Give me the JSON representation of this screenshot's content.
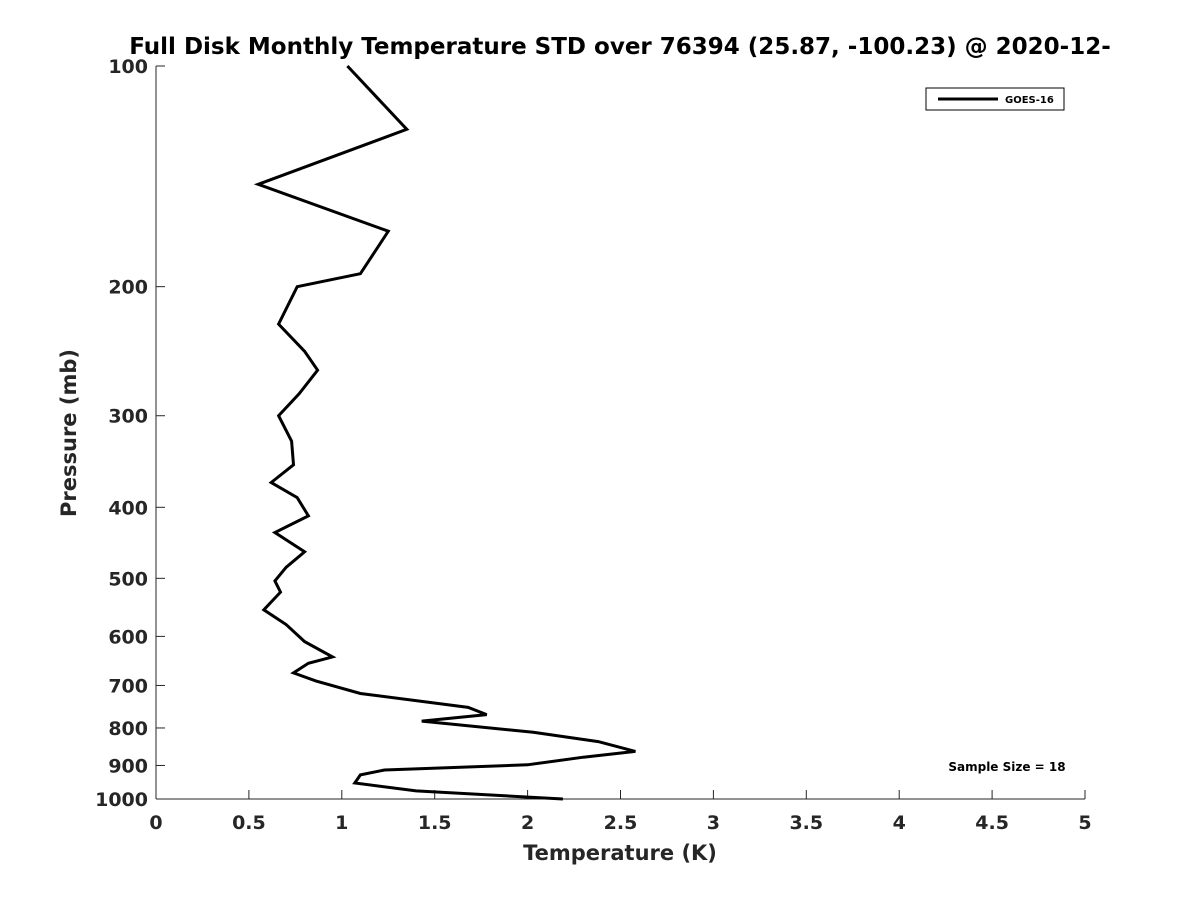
{
  "chart_data": {
    "type": "line",
    "title": "Full Disk Monthly Temperature STD over 76394 (25.87, -100.23) @ 2020-12-",
    "xlabel": "Temperature (K)",
    "ylabel": "Pressure (mb)",
    "xlim": [
      0,
      5
    ],
    "ylim": [
      100,
      1000
    ],
    "y_scale": "log",
    "y_reversed": true,
    "x_ticks": [
      0,
      0.5,
      1,
      1.5,
      2,
      2.5,
      3,
      3.5,
      4,
      4.5,
      5
    ],
    "x_tick_labels": [
      "0",
      "0.5",
      "1",
      "1.5",
      "2",
      "2.5",
      "3",
      "3.5",
      "4",
      "4.5",
      "5"
    ],
    "y_ticks": [
      100,
      200,
      300,
      400,
      500,
      600,
      700,
      800,
      900,
      1000
    ],
    "y_tick_labels": [
      "100",
      "200",
      "300",
      "400",
      "500",
      "600",
      "700",
      "800",
      "900",
      "1000"
    ],
    "grid": false,
    "legend_position": "top-right",
    "annotation": "Sample Size = 18",
    "series": [
      {
        "name": "GOES-16",
        "color": "#000000",
        "x": [
          1.03,
          1.35,
          0.55,
          1.25,
          1.1,
          0.76,
          0.66,
          0.8,
          0.87,
          0.77,
          0.66,
          0.73,
          0.74,
          0.62,
          0.76,
          0.82,
          0.64,
          0.8,
          0.7,
          0.64,
          0.67,
          0.58,
          0.7,
          0.8,
          0.95,
          0.82,
          0.74,
          0.86,
          1.1,
          1.68,
          1.78,
          1.43,
          2.03,
          2.38,
          2.58,
          2.3,
          2.0,
          1.23,
          1.1,
          1.07,
          1.4,
          2.19
        ],
        "y": [
          100,
          122,
          145,
          168,
          192,
          200,
          225,
          245,
          260,
          280,
          300,
          325,
          350,
          370,
          388,
          411,
          433,
          460,
          483,
          504,
          522,
          552,
          578,
          610,
          640,
          653,
          673,
          690,
          718,
          750,
          767,
          783,
          811,
          835,
          861,
          877,
          898,
          913,
          927,
          951,
          975,
          1000
        ]
      }
    ]
  }
}
